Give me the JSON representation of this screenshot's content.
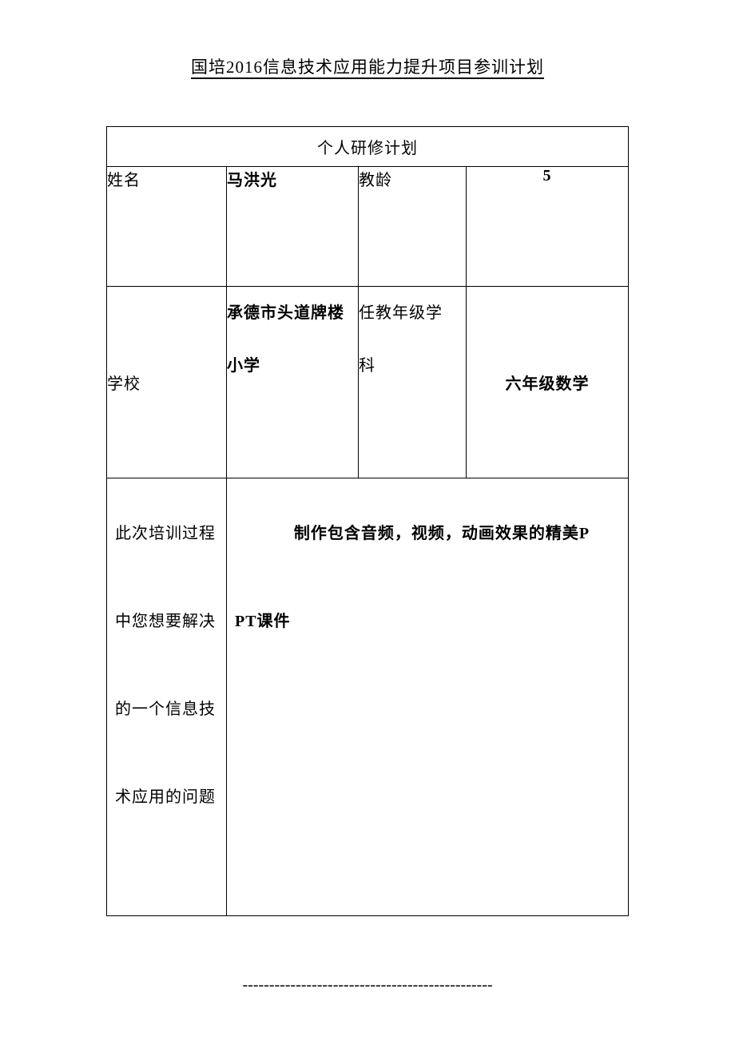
{
  "title": "国培2016信息技术应用能力提升项目参训计划",
  "table": {
    "header": "个人研修计划",
    "name_label": "姓名",
    "name_value": "马洪光",
    "exp_label": "教龄",
    "exp_value": "5",
    "school_label": "学校",
    "school_value_l1": "承德市头道牌楼",
    "school_value_l2": "小学",
    "grade_label_l1": "任教年级学",
    "grade_label_l2": "科",
    "grade_value": "六年级数学",
    "question_l1": "此次培训过程",
    "question_l2": "中您想要解决",
    "question_l3": "的一个信息技",
    "question_l4": "术应用的问题",
    "answer_l1": "制作包含音频，视频，动画效果的精美P",
    "answer_l2": "PT课件"
  },
  "footer": "-----------------------------------------------"
}
